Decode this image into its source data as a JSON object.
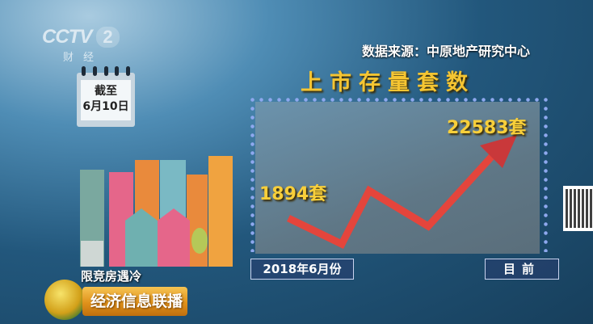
{
  "broadcast": {
    "channel_logo": "CCTV 2",
    "channel_sub": "财经",
    "source": "数据来源：中原地产研究中心",
    "calendar_line1": "截至",
    "calendar_line2": "6月10日",
    "story_tag": "限竞房遇冷",
    "program_name": "经济信息联播"
  },
  "chart_data": {
    "type": "line",
    "title": "上市存量套数",
    "categories": [
      "2018年6月份",
      "目前"
    ],
    "values": [
      1894,
      22583
    ],
    "data_labels": [
      "1894套",
      "22583套"
    ],
    "series_color": "#e4453c",
    "label_color": "#f8cf3a",
    "grid": false
  }
}
